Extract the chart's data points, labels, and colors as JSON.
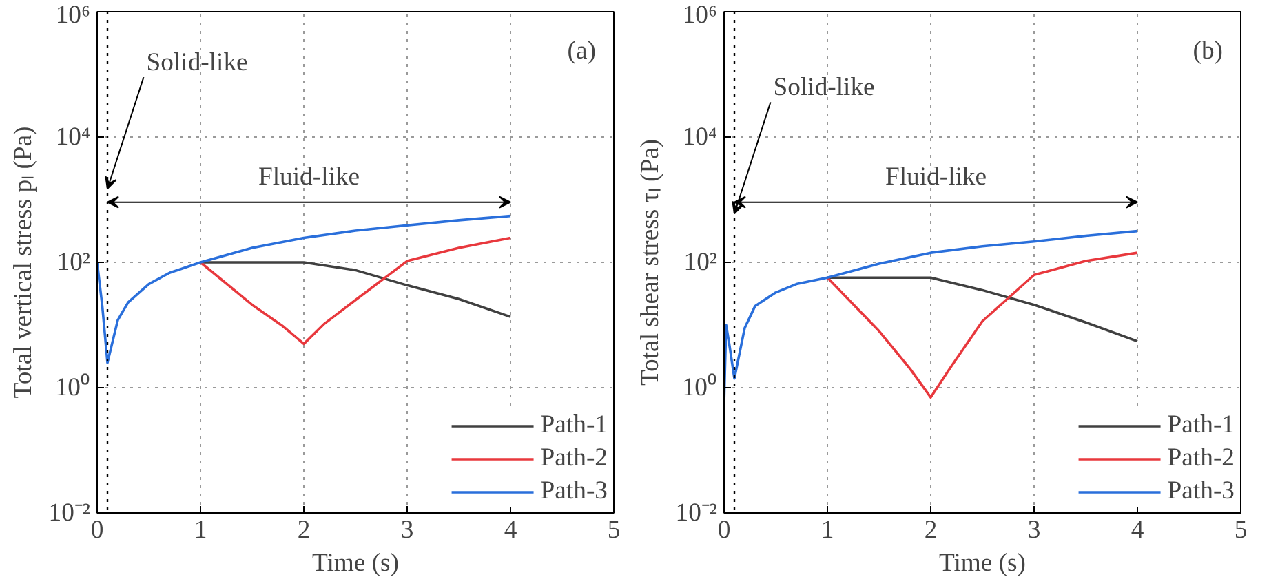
{
  "chart_data": [
    {
      "type": "line",
      "xlabel": "Time (s)",
      "ylabel": "Total vertical stress pₗ (Pa)",
      "log": "y",
      "grid": true,
      "legend": "bottom right",
      "xlim": [
        0,
        5
      ],
      "ylim": [
        0.01,
        1000000
      ],
      "xticks": [
        0,
        1,
        2,
        3,
        4,
        5
      ],
      "yticks": [
        {
          "value": 0.01,
          "label": "10⁻²"
        },
        {
          "value": 1,
          "label": "10⁰"
        },
        {
          "value": 100,
          "label": "10²"
        },
        {
          "value": 10000,
          "label": "10⁴"
        },
        {
          "value": 1000000,
          "label": "10⁶"
        }
      ],
      "annotations": [
        "(a)",
        {
          "text": "Solid-like",
          "x": 0.1,
          "y": 1500
        },
        "Fluid-like"
      ],
      "ref_lines": [
        {
          "axis": "x",
          "value": 0.1,
          "color": "#000000",
          "line_style": "dotted"
        }
      ],
      "series": [
        {
          "name": "Path-1",
          "color": "#404040",
          "x": [
            1,
            1.5,
            2,
            2.5,
            3,
            3.5,
            4
          ],
          "values": [
            100,
            100,
            100,
            75,
            43,
            26,
            13.5
          ]
        },
        {
          "name": "Path-2",
          "color": "#e8383d",
          "x": [
            1,
            1.5,
            1.8,
            2,
            2.2,
            2.5,
            3,
            3.5,
            4
          ],
          "values": [
            100,
            21,
            9.5,
            5,
            10.5,
            25,
            105,
            170,
            245
          ]
        },
        {
          "name": "Path-3",
          "color": "#2a6fdb",
          "x": [
            0,
            0.05,
            0.1,
            0.2,
            0.3,
            0.5,
            0.7,
            1,
            1.5,
            2,
            2.5,
            3,
            3.5,
            4
          ],
          "values": [
            100,
            20,
            2.5,
            12,
            23,
            45,
            68,
            100,
            170,
            245,
            320,
            390,
            470,
            550
          ]
        }
      ]
    },
    {
      "type": "line",
      "xlabel": "Time (s)",
      "ylabel": "Total shear stress τₗ (Pa)",
      "log": "y",
      "grid": true,
      "legend": "bottom right",
      "xlim": [
        0,
        5
      ],
      "ylim": [
        0.01,
        1000000
      ],
      "xticks": [
        0,
        1,
        2,
        3,
        4,
        5
      ],
      "yticks": [
        {
          "value": 0.01,
          "label": "10⁻²"
        },
        {
          "value": 1,
          "label": "10⁰"
        },
        {
          "value": 100,
          "label": "10²"
        },
        {
          "value": 10000,
          "label": "10⁴"
        },
        {
          "value": 1000000,
          "label": "10⁶"
        }
      ],
      "annotations": [
        "(b)",
        {
          "text": "Solid-like",
          "x": 0.1,
          "y": 600
        },
        "Fluid-like"
      ],
      "ref_lines": [
        {
          "axis": "x",
          "value": 0.1,
          "color": "#000000",
          "line_style": "dotted"
        }
      ],
      "series": [
        {
          "name": "Path-1",
          "color": "#404040",
          "x": [
            1,
            1.5,
            2,
            2.5,
            3,
            3.5,
            4
          ],
          "values": [
            57,
            57,
            57,
            36,
            21,
            11,
            5.5
          ]
        },
        {
          "name": "Path-2",
          "color": "#e8383d",
          "x": [
            1,
            1.5,
            1.8,
            2,
            2.2,
            2.5,
            3,
            3.5,
            4
          ],
          "values": [
            57,
            8,
            2,
            0.7,
            2.2,
            11.5,
            63,
            105,
            142
          ]
        },
        {
          "name": "Path-3",
          "color": "#2a6fdb",
          "x": [
            0,
            0.02,
            0.05,
            0.1,
            0.2,
            0.3,
            0.5,
            0.7,
            1,
            1.5,
            2,
            2.5,
            3,
            3.5,
            4
          ],
          "values": [
            0.56,
            10,
            5,
            1.4,
            9,
            20,
            33,
            45,
            57,
            95,
            142,
            180,
            215,
            265,
            315
          ]
        }
      ]
    }
  ]
}
